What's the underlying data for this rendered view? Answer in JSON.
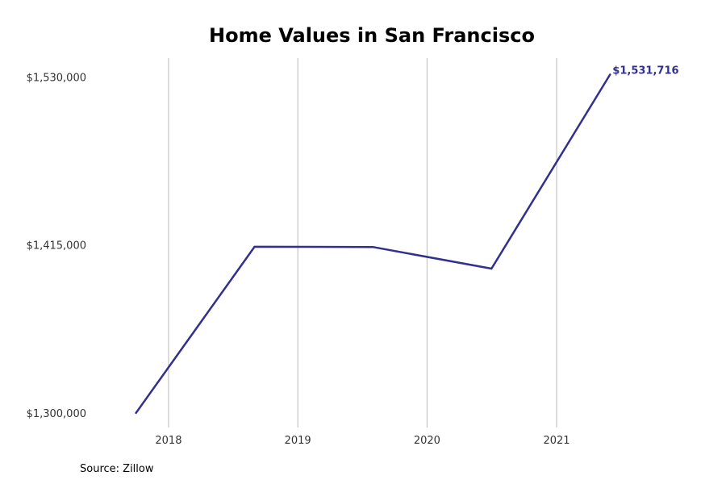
{
  "chart_data": {
    "type": "line",
    "title": "Home Values in San Francisco",
    "xlabel": "",
    "ylabel": "",
    "x_ticks": [
      "2018",
      "2019",
      "2020",
      "2021"
    ],
    "x_tick_values": [
      "2018-01-01",
      "2019-01-01",
      "2020-01-01",
      "2021-01-01"
    ],
    "x_range": [
      "2017-06-01",
      "2022-02-15"
    ],
    "y_ticks": [
      "$1,300,000",
      "$1,415,000",
      "$1,530,000"
    ],
    "y_tick_values": [
      1300000,
      1415000,
      1530000
    ],
    "ylim": [
      1290000,
      1543000
    ],
    "grid": "vertical",
    "series": [
      {
        "color": "#32308e",
        "x": [
          "2017-10-01",
          "2018-09-01",
          "2019-08-01",
          "2020-07-01",
          "2021-06-01"
        ],
        "values": [
          1300000,
          1413800,
          1413600,
          1398800,
          1531716
        ]
      }
    ],
    "annotations": [
      {
        "text": "$1,531,716",
        "x": "2021-06-01",
        "y": 1531716
      }
    ]
  },
  "footer": {
    "source": "Source: Zillow"
  }
}
